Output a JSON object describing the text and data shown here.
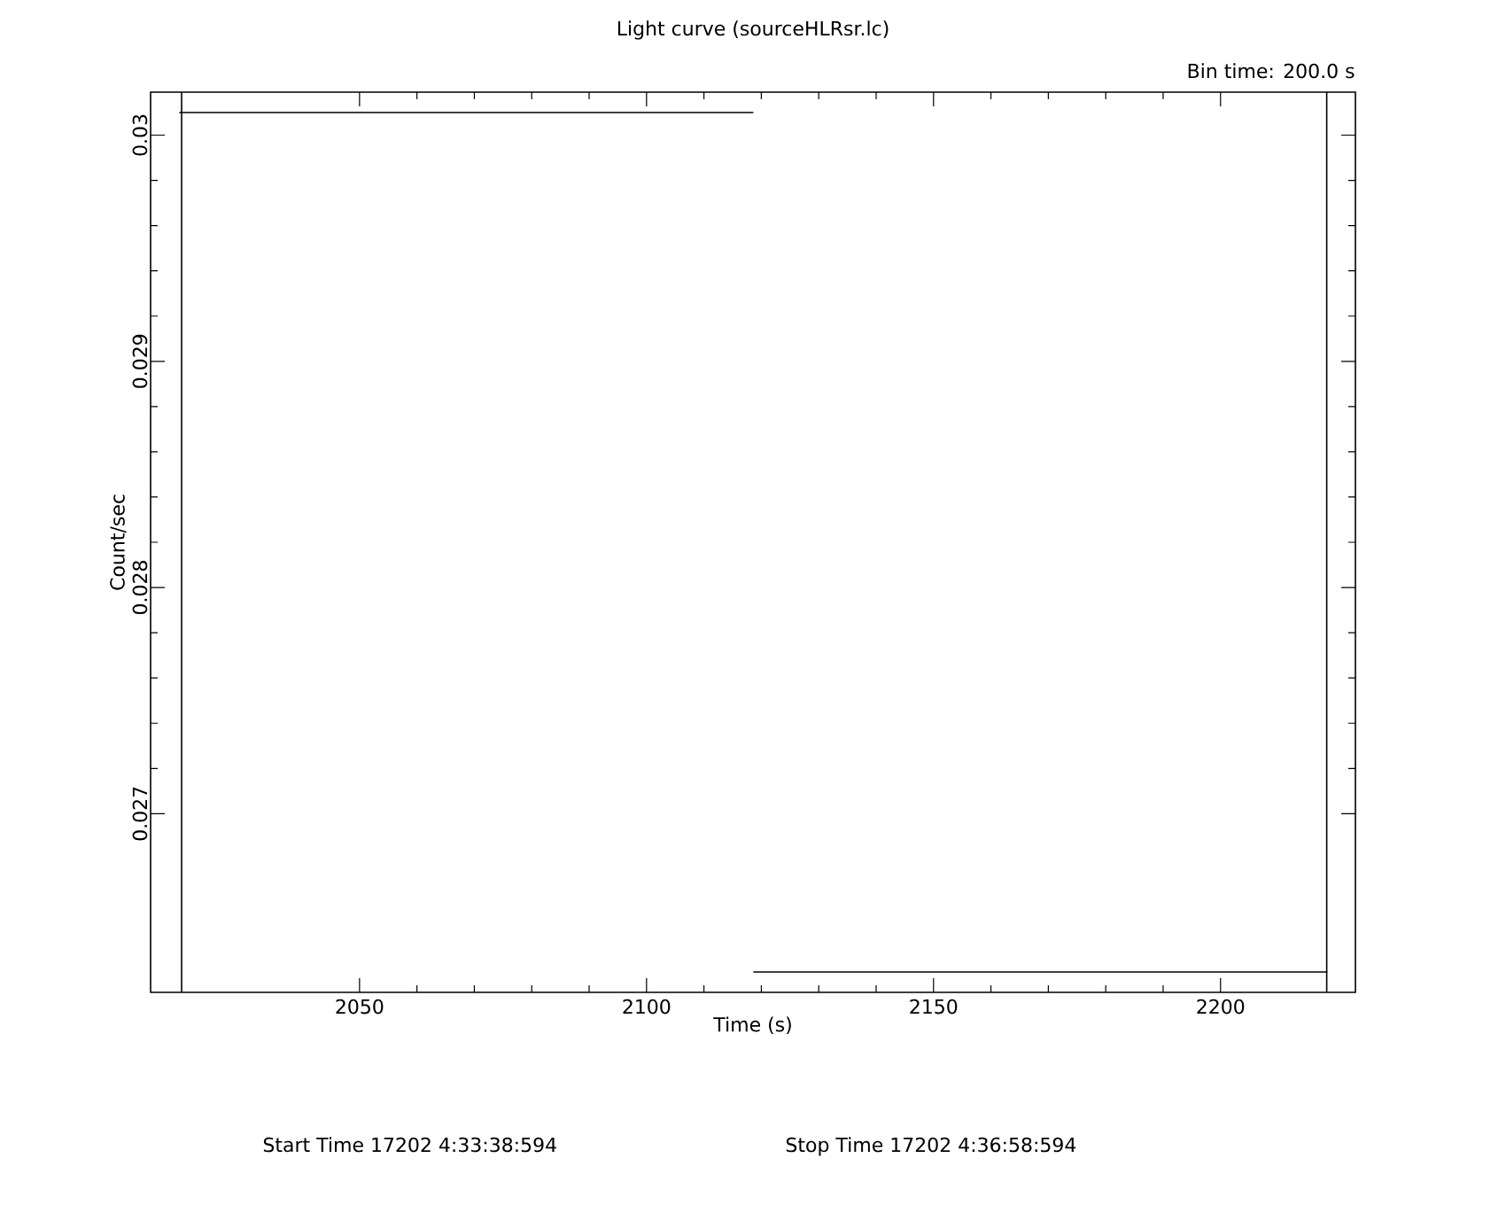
{
  "chart_data": {
    "type": "line",
    "title": "Light curve (sourceHLRsr.lc)",
    "xlabel": "Time (s)",
    "ylabel": "Count/sec",
    "x": [
      2018.6,
      2118.6,
      null,
      2118.6,
      2218.6
    ],
    "values": [
      0.0301,
      0.0301,
      null,
      0.0263,
      0.0263
    ],
    "line_style": "solid",
    "color": "#000000",
    "xlim": [
      2013.6,
      2223.5
    ],
    "ylim": [
      0.02621,
      0.03019
    ],
    "xticks": [
      2050,
      2100,
      2150,
      2200
    ],
    "yticks": [
      0.027,
      0.028,
      0.029,
      0.03
    ],
    "ref_lines": [
      {
        "axis": "x",
        "value": 2019
      },
      {
        "axis": "x",
        "value": 2218.5
      }
    ],
    "annotations": [
      "Bin time:    200.0      s",
      "Start Time 17202  4:33:38:594",
      "Stop Time 17202  4:36:58:594"
    ],
    "grid": false
  }
}
